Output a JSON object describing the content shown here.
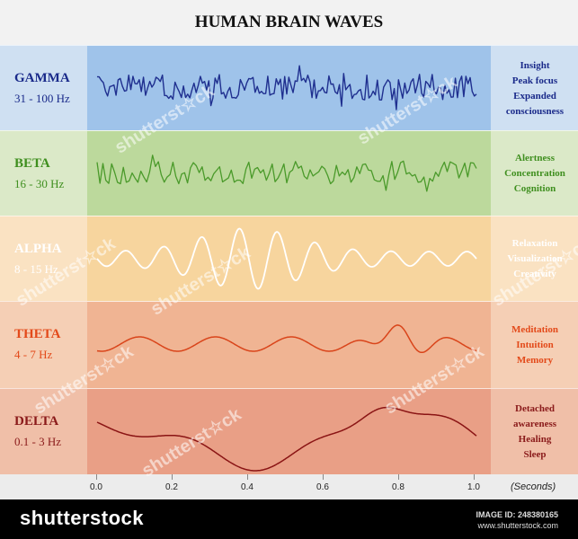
{
  "title": "HUMAN BRAIN WAVES",
  "bands": [
    {
      "name": "GAMMA",
      "freq": "31 - 100 Hz",
      "effects": [
        "Insight",
        "Peak focus",
        "Expanded",
        "consciousness"
      ],
      "color": "#1a2a8a",
      "bg_side": "#cfe0f2",
      "bg_center": "#9fc3ea",
      "wave_color": "#1f2f8f"
    },
    {
      "name": "BETA",
      "freq": "16 - 30 Hz",
      "effects": [
        "Alertness",
        "Concentration",
        "Cognition"
      ],
      "color": "#3f8f1f",
      "bg_side": "#dbe9c8",
      "bg_center": "#bcd99c",
      "wave_color": "#4a9a2a"
    },
    {
      "name": "ALPHA",
      "freq": "8 - 15 Hz",
      "effects": [
        "Relaxation",
        "Visualization",
        "Creativity"
      ],
      "color": "#ffffff",
      "bg_side": "#fae2c2",
      "bg_center": "#f7d59e",
      "wave_color": "#ffffff"
    },
    {
      "name": "THETA",
      "freq": "4 - 7 Hz",
      "effects": [
        "Meditation",
        "Intuition",
        "Memory"
      ],
      "color": "#e34a1a",
      "bg_side": "#f5cfb5",
      "bg_center": "#f0b493",
      "wave_color": "#d9441a"
    },
    {
      "name": "DELTA",
      "freq": "0.1 - 3 Hz",
      "effects": [
        "Detached",
        "awareness",
        "Healing",
        "Sleep"
      ],
      "color": "#8a1a1a",
      "bg_side": "#f0bfa8",
      "bg_center": "#e99f86",
      "wave_color": "#8a1414"
    }
  ],
  "axis": {
    "ticks": [
      "0.0",
      "0.2",
      "0.4",
      "0.6",
      "0.8",
      "1.0"
    ],
    "unit": "(Seconds)"
  },
  "footer": {
    "brand": "shutterstock",
    "image_id": "IMAGE ID: 248380165",
    "site": "www.shutterstock.com"
  },
  "watermark": "shutterst☆ck"
}
